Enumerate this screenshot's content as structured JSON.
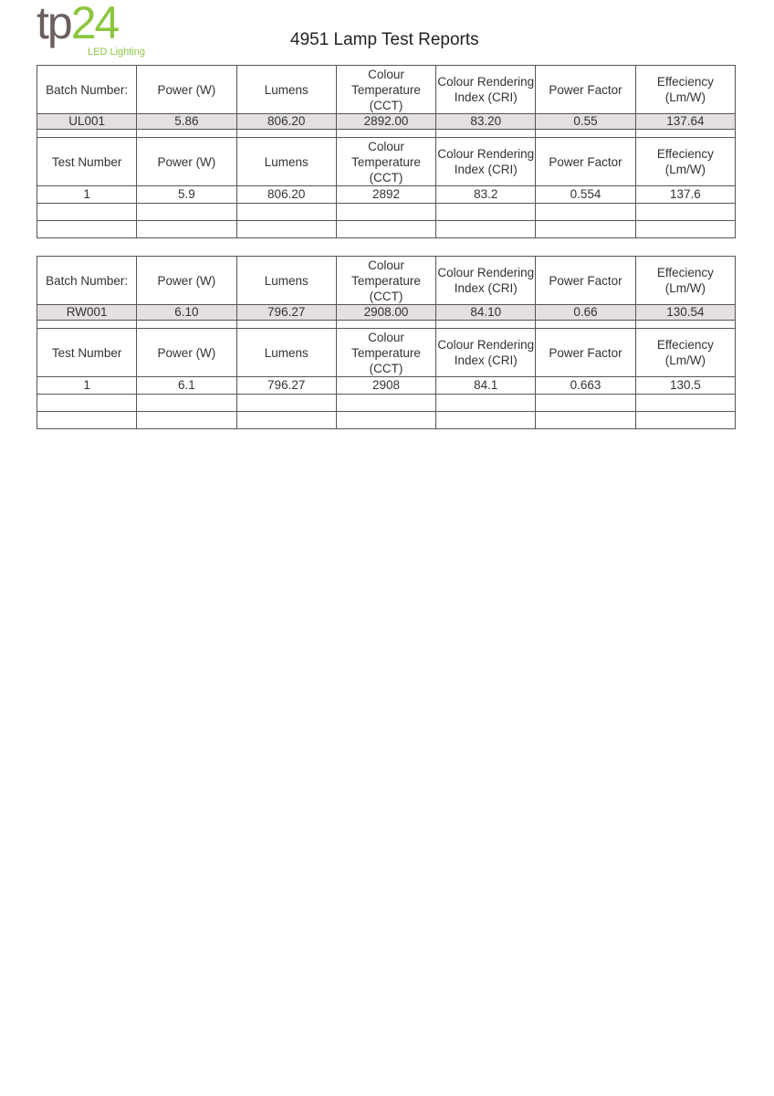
{
  "logo": {
    "main": "tp",
    "number": "24",
    "tagline": "LED Lighting",
    "colors": {
      "tp": "#6b5f5b",
      "accent": "#8cc63f"
    }
  },
  "title": "4951 Lamp Test Reports",
  "batch_headers": [
    "Batch Number:",
    "Power (W)",
    "Lumens",
    "Colour Temperature (CCT)",
    "Colour Rendering Index (CRI)",
    "Power Factor",
    "Effeciency (Lm/W)"
  ],
  "test_headers": [
    "Test Number",
    "Power (W)",
    "Lumens",
    "Colour Temperature (CCT)",
    "Colour Rendering Index (CRI)",
    "Power Factor",
    "Effeciency (Lm/W)"
  ],
  "reports": [
    {
      "batch": [
        "UL001",
        "5.86",
        "806.20",
        "2892.00",
        "83.20",
        "0.55",
        "137.64"
      ],
      "tests": [
        [
          "1",
          "5.9",
          "806.20",
          "2892",
          "83.2",
          "0.554",
          "137.6"
        ],
        [
          "",
          "",
          "",
          "",
          "",
          "",
          ""
        ],
        [
          "",
          "",
          "",
          "",
          "",
          "",
          ""
        ]
      ]
    },
    {
      "batch": [
        "RW001",
        "6.10",
        "796.27",
        "2908.00",
        "84.10",
        "0.66",
        "130.54"
      ],
      "tests": [
        [
          "1",
          "6.1",
          "796.27",
          "2908",
          "84.1",
          "0.663",
          "130.5"
        ],
        [
          "",
          "",
          "",
          "",
          "",
          "",
          ""
        ],
        [
          "",
          "",
          "",
          "",
          "",
          "",
          ""
        ]
      ]
    }
  ]
}
